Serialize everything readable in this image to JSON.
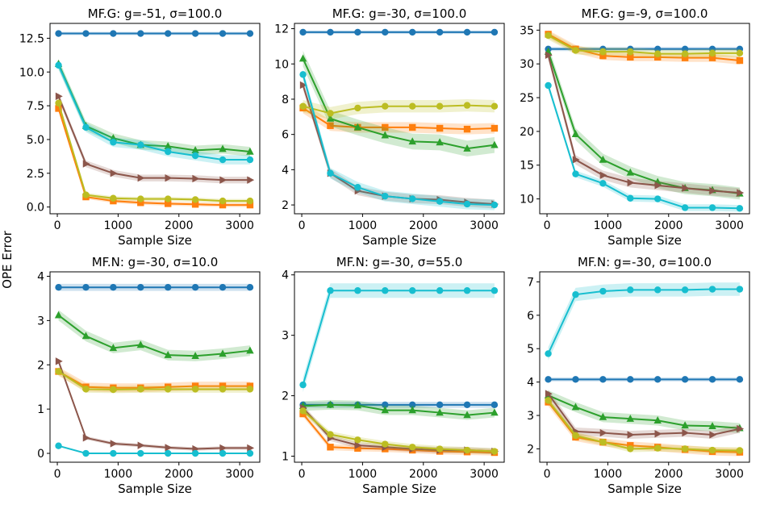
{
  "figure": {
    "ylabel": "OPE Error",
    "xlabel": "Sample Size"
  },
  "series_colors": [
    "#1f77b4",
    "#ff7f0e",
    "#2ca02c",
    "#8c564b",
    "#bcbd22",
    "#17becf"
  ],
  "series_markers": [
    "circle",
    "square",
    "triangle",
    "triangle-right",
    "circle",
    "circle"
  ],
  "chart_data": [
    {
      "type": "line",
      "title": "MF.G: g=-51, σ=100.0",
      "xlabel": "Sample Size",
      "ylabel": "OPE Error",
      "xlim": [
        -120,
        3330
      ],
      "ylim": [
        -0.5,
        13.6
      ],
      "xticks": [
        0,
        1000,
        2000,
        3000
      ],
      "xtick_labels": [
        "0",
        "1000",
        "2000",
        "3000"
      ],
      "yticks": [
        0,
        2.5,
        5,
        7.5,
        10,
        12.5
      ],
      "ytick_labels": [
        "0.0",
        "2.5",
        "5.0",
        "7.5",
        "10.0",
        "12.5"
      ],
      "x": [
        20,
        470,
        920,
        1370,
        1820,
        2270,
        2720,
        3170
      ],
      "series": [
        {
          "values": [
            12.85,
            12.85,
            12.85,
            12.85,
            12.85,
            12.85,
            12.85,
            12.85
          ],
          "band": 0.12
        },
        {
          "values": [
            7.3,
            0.75,
            0.45,
            0.32,
            0.25,
            0.2,
            0.15,
            0.15
          ],
          "band": 0.15
        },
        {
          "values": [
            10.6,
            6.0,
            5.1,
            4.6,
            4.5,
            4.2,
            4.3,
            4.1
          ],
          "band": 0.35
        },
        {
          "values": [
            8.2,
            3.2,
            2.5,
            2.15,
            2.15,
            2.1,
            2.0,
            2.0
          ],
          "band": 0.25
        },
        {
          "values": [
            7.7,
            0.9,
            0.65,
            0.6,
            0.6,
            0.55,
            0.45,
            0.45
          ],
          "band": 0.15
        },
        {
          "values": [
            10.5,
            5.9,
            4.8,
            4.6,
            4.1,
            3.8,
            3.5,
            3.5
          ],
          "band": 0.35
        }
      ]
    },
    {
      "type": "line",
      "title": "MF.G: g=-30, σ=100.0",
      "xlabel": "Sample Size",
      "ylabel": "OPE Error",
      "xlim": [
        -120,
        3330
      ],
      "ylim": [
        1.5,
        12.3
      ],
      "xticks": [
        0,
        1000,
        2000,
        3000
      ],
      "xtick_labels": [
        "0",
        "1000",
        "2000",
        "3000"
      ],
      "yticks": [
        2,
        4,
        6,
        8,
        10,
        12
      ],
      "ytick_labels": [
        "2",
        "4",
        "6",
        "8",
        "10",
        "12"
      ],
      "x": [
        20,
        470,
        920,
        1370,
        1820,
        2270,
        2720,
        3170
      ],
      "series": [
        {
          "values": [
            11.8,
            11.8,
            11.8,
            11.8,
            11.8,
            11.8,
            11.8,
            11.8
          ],
          "band": 0.1
        },
        {
          "values": [
            7.5,
            6.5,
            6.4,
            6.4,
            6.4,
            6.35,
            6.3,
            6.35
          ],
          "band": 0.3
        },
        {
          "values": [
            10.3,
            6.9,
            6.4,
            5.95,
            5.6,
            5.55,
            5.2,
            5.4
          ],
          "band": 0.45
        },
        {
          "values": [
            8.8,
            3.8,
            2.8,
            2.5,
            2.35,
            2.3,
            2.15,
            2.05
          ],
          "band": 0.25
        },
        {
          "values": [
            7.6,
            7.2,
            7.5,
            7.6,
            7.6,
            7.6,
            7.65,
            7.6
          ],
          "band": 0.35
        },
        {
          "values": [
            9.4,
            3.8,
            3.0,
            2.5,
            2.35,
            2.2,
            2.05,
            2.0
          ],
          "band": 0.3
        }
      ]
    },
    {
      "type": "line",
      "title": "MF.G: g=-9, σ=100.0",
      "xlabel": "Sample Size",
      "ylabel": "OPE Error",
      "xlim": [
        -120,
        3330
      ],
      "ylim": [
        7.8,
        36.0
      ],
      "xticks": [
        0,
        1000,
        2000,
        3000
      ],
      "xtick_labels": [
        "0",
        "1000",
        "2000",
        "3000"
      ],
      "yticks": [
        10,
        15,
        20,
        25,
        30,
        35
      ],
      "ytick_labels": [
        "10",
        "15",
        "20",
        "25",
        "30",
        "35"
      ],
      "x": [
        20,
        470,
        920,
        1370,
        1820,
        2270,
        2720,
        3170
      ],
      "series": [
        {
          "values": [
            32.2,
            32.2,
            32.2,
            32.2,
            32.2,
            32.2,
            32.2,
            32.2
          ],
          "band": 0.3
        },
        {
          "values": [
            34.4,
            32.2,
            31.2,
            31.0,
            31.0,
            30.9,
            30.9,
            30.5
          ],
          "band": 0.6
        },
        {
          "values": [
            31.8,
            19.6,
            15.8,
            13.9,
            12.5,
            11.6,
            11.3,
            10.8
          ],
          "band": 0.9
        },
        {
          "values": [
            31.3,
            15.8,
            13.5,
            12.4,
            12.0,
            11.6,
            11.2,
            10.9
          ],
          "band": 0.7
        },
        {
          "values": [
            34.2,
            32.0,
            31.8,
            31.8,
            31.5,
            31.5,
            31.6,
            31.6
          ],
          "band": 0.6
        },
        {
          "values": [
            26.8,
            13.7,
            12.3,
            10.1,
            10.0,
            8.7,
            8.7,
            8.6
          ],
          "band": 0.5
        }
      ]
    },
    {
      "type": "line",
      "title": "MF.N: g=-30, σ=10.0",
      "xlabel": "Sample Size",
      "ylabel": "OPE Error",
      "xlim": [
        -120,
        3330
      ],
      "ylim": [
        -0.2,
        4.1
      ],
      "xticks": [
        0,
        1000,
        2000,
        3000
      ],
      "xtick_labels": [
        "0",
        "1000",
        "2000",
        "3000"
      ],
      "yticks": [
        0,
        1,
        2,
        3,
        4
      ],
      "ytick_labels": [
        "0",
        "1",
        "2",
        "3",
        "4"
      ],
      "x": [
        20,
        470,
        920,
        1370,
        1820,
        2270,
        2720,
        3170
      ],
      "series": [
        {
          "values": [
            3.75,
            3.75,
            3.75,
            3.75,
            3.75,
            3.75,
            3.75,
            3.75
          ],
          "band": 0.08
        },
        {
          "values": [
            1.85,
            1.5,
            1.48,
            1.48,
            1.5,
            1.52,
            1.52,
            1.52
          ],
          "band": 0.1
        },
        {
          "values": [
            3.12,
            2.65,
            2.38,
            2.45,
            2.22,
            2.2,
            2.25,
            2.32
          ],
          "band": 0.12
        },
        {
          "values": [
            2.08,
            0.35,
            0.22,
            0.18,
            0.13,
            0.1,
            0.12,
            0.12
          ],
          "band": 0.04
        },
        {
          "values": [
            1.85,
            1.45,
            1.44,
            1.45,
            1.45,
            1.45,
            1.45,
            1.45
          ],
          "band": 0.08
        },
        {
          "values": [
            0.17,
            0.0,
            0.0,
            0.0,
            0.0,
            0.0,
            0.0,
            0.0
          ],
          "band": 0.01
        }
      ]
    },
    {
      "type": "line",
      "title": "MF.N: g=-30, σ=55.0",
      "xlabel": "Sample Size",
      "ylabel": "OPE Error",
      "xlim": [
        -120,
        3330
      ],
      "ylim": [
        0.9,
        4.05
      ],
      "xticks": [
        0,
        1000,
        2000,
        3000
      ],
      "xtick_labels": [
        "0",
        "1000",
        "2000",
        "3000"
      ],
      "yticks": [
        1,
        2,
        3,
        4
      ],
      "ytick_labels": [
        "1",
        "2",
        "3",
        "4"
      ],
      "x": [
        20,
        470,
        920,
        1370,
        1820,
        2270,
        2720,
        3170
      ],
      "series": [
        {
          "values": [
            1.85,
            1.85,
            1.85,
            1.85,
            1.85,
            1.85,
            1.85,
            1.85
          ],
          "band": 0.05
        },
        {
          "values": [
            1.7,
            1.15,
            1.13,
            1.12,
            1.1,
            1.08,
            1.07,
            1.06
          ],
          "band": 0.05
        },
        {
          "values": [
            1.83,
            1.85,
            1.84,
            1.76,
            1.76,
            1.72,
            1.68,
            1.72
          ],
          "band": 0.08
        },
        {
          "values": [
            1.8,
            1.3,
            1.18,
            1.15,
            1.12,
            1.1,
            1.1,
            1.08
          ],
          "band": 0.05
        },
        {
          "values": [
            1.75,
            1.36,
            1.27,
            1.2,
            1.15,
            1.12,
            1.1,
            1.08
          ],
          "band": 0.05
        },
        {
          "values": [
            2.18,
            3.74,
            3.74,
            3.74,
            3.74,
            3.74,
            3.74,
            3.74
          ],
          "band": 0.12
        }
      ]
    },
    {
      "type": "line",
      "title": "MF.N: g=-30, σ=100.0",
      "xlabel": "Sample Size",
      "ylabel": "OPE Error",
      "xlim": [
        -120,
        3330
      ],
      "ylim": [
        1.6,
        7.3
      ],
      "xticks": [
        0,
        1000,
        2000,
        3000
      ],
      "xtick_labels": [
        "0",
        "1000",
        "2000",
        "3000"
      ],
      "yticks": [
        2,
        3,
        4,
        5,
        6,
        7
      ],
      "ytick_labels": [
        "2",
        "3",
        "4",
        "5",
        "6",
        "7"
      ],
      "x": [
        20,
        470,
        920,
        1370,
        1820,
        2270,
        2720,
        3170
      ],
      "series": [
        {
          "values": [
            4.08,
            4.08,
            4.08,
            4.08,
            4.08,
            4.08,
            4.08,
            4.08
          ],
          "band": 0.06
        },
        {
          "values": [
            3.4,
            2.35,
            2.2,
            2.1,
            2.05,
            1.98,
            1.92,
            1.9
          ],
          "band": 0.12
        },
        {
          "values": [
            3.6,
            3.25,
            2.95,
            2.9,
            2.85,
            2.7,
            2.68,
            2.62
          ],
          "band": 0.15
        },
        {
          "values": [
            3.65,
            2.52,
            2.48,
            2.42,
            2.45,
            2.48,
            2.42,
            2.6
          ],
          "band": 0.12
        },
        {
          "values": [
            3.45,
            2.4,
            2.2,
            2.0,
            2.02,
            2.0,
            1.96,
            1.95
          ],
          "band": 0.1
        },
        {
          "values": [
            4.85,
            6.62,
            6.72,
            6.76,
            6.76,
            6.76,
            6.78,
            6.78
          ],
          "band": 0.2
        }
      ]
    }
  ]
}
